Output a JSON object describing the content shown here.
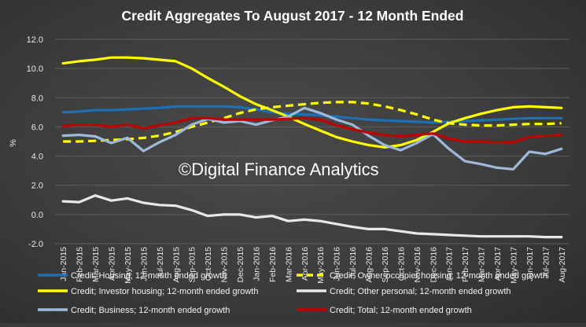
{
  "chart_data": {
    "type": "line",
    "title": "Credit Aggregates To August 2017 - 12 Month Ended",
    "ylabel": "%",
    "xlabel": "",
    "ylim": [
      -2.0,
      12.0
    ],
    "yticks": [
      "12.0",
      "10.0",
      "8.0",
      "6.0",
      "4.0",
      "2.0",
      "0.0",
      "-2.0"
    ],
    "grid": true,
    "legend_position": "bottom",
    "categories": [
      "Jan-2015",
      "Feb-2015",
      "Mar-2015",
      "Apr-2015",
      "May-2015",
      "Jun-2015",
      "Jul-2015",
      "Aug-2015",
      "Sep-2015",
      "Oct-2015",
      "Nov-2015",
      "Dec-2015",
      "Jan-2016",
      "Feb-2016",
      "Mar-2016",
      "Apr-2016",
      "May-2016",
      "Jun-2016",
      "Jul-2016",
      "Aug-2016",
      "Sep-2016",
      "Oct-2016",
      "Nov-2016",
      "Dec-2016",
      "Jan-2017",
      "Feb-2017",
      "Mar-2017",
      "Apr-2017",
      "May-2017",
      "Jun-2017",
      "Jul-2017",
      "Aug-2017"
    ],
    "series": [
      {
        "name": "Credit; Housing; 12-month ended growth",
        "color": "#1f6fb5",
        "dash": false,
        "values": [
          7.0,
          7.05,
          7.15,
          7.15,
          7.2,
          7.25,
          7.3,
          7.4,
          7.4,
          7.4,
          7.4,
          7.35,
          7.2,
          7.0,
          6.9,
          6.85,
          6.8,
          6.7,
          6.6,
          6.5,
          6.45,
          6.4,
          6.35,
          6.3,
          6.35,
          6.4,
          6.45,
          6.5,
          6.55,
          6.6,
          6.6,
          6.6
        ]
      },
      {
        "name": "Credit; Owner-occupier housing; 12-month ended growth",
        "color": "#ffff00",
        "dash": true,
        "values": [
          5.0,
          5.0,
          5.05,
          5.1,
          5.15,
          5.25,
          5.4,
          5.65,
          6.0,
          6.3,
          6.6,
          6.95,
          7.2,
          7.35,
          7.45,
          7.55,
          7.65,
          7.7,
          7.7,
          7.6,
          7.4,
          7.15,
          6.85,
          6.5,
          6.25,
          6.15,
          6.1,
          6.1,
          6.15,
          6.2,
          6.2,
          6.25
        ]
      },
      {
        "name": "Credit; Investor housing; 12-month ended growth",
        "color": "#ffff00",
        "dash": false,
        "values": [
          10.35,
          10.5,
          10.6,
          10.75,
          10.75,
          10.7,
          10.6,
          10.5,
          10.0,
          9.35,
          8.75,
          8.1,
          7.55,
          7.15,
          6.7,
          6.2,
          5.75,
          5.3,
          5.0,
          4.75,
          4.6,
          4.75,
          5.1,
          5.65,
          6.25,
          6.6,
          6.9,
          7.15,
          7.35,
          7.4,
          7.35,
          7.3
        ]
      },
      {
        "name": "Credit; Other personal; 12-month ended growth",
        "color": "#e8e8e8",
        "dash": false,
        "values": [
          0.9,
          0.85,
          1.3,
          0.95,
          1.1,
          0.8,
          0.65,
          0.6,
          0.3,
          -0.1,
          0.0,
          0.0,
          -0.2,
          -0.1,
          -0.45,
          -0.35,
          -0.45,
          -0.65,
          -0.85,
          -1.0,
          -1.0,
          -1.15,
          -1.3,
          -1.35,
          -1.4,
          -1.45,
          -1.5,
          -1.5,
          -1.5,
          -1.5,
          -1.55,
          -1.55
        ]
      },
      {
        "name": "Credit; Business; 12-month ended growth",
        "color": "#9fb9db",
        "dash": false,
        "values": [
          5.4,
          5.45,
          5.35,
          4.9,
          5.25,
          4.35,
          4.95,
          5.45,
          6.15,
          6.55,
          6.3,
          6.4,
          6.15,
          6.45,
          6.7,
          7.3,
          6.95,
          6.5,
          6.15,
          5.4,
          4.75,
          4.4,
          4.9,
          5.5,
          4.5,
          3.65,
          3.45,
          3.2,
          3.1,
          4.3,
          4.15,
          4.5
        ]
      },
      {
        "name": "Credit; Total; 12-month ended growth",
        "color": "#c00000",
        "dash": false,
        "values": [
          6.05,
          6.15,
          6.15,
          6.0,
          6.15,
          5.9,
          6.1,
          6.3,
          6.6,
          6.6,
          6.5,
          6.5,
          6.5,
          6.5,
          6.55,
          6.6,
          6.5,
          6.1,
          5.85,
          5.6,
          5.45,
          5.35,
          5.45,
          5.55,
          5.2,
          5.0,
          5.0,
          4.95,
          4.95,
          5.3,
          5.4,
          5.45
        ]
      }
    ],
    "annotation": "©Digital Finance Analytics"
  }
}
